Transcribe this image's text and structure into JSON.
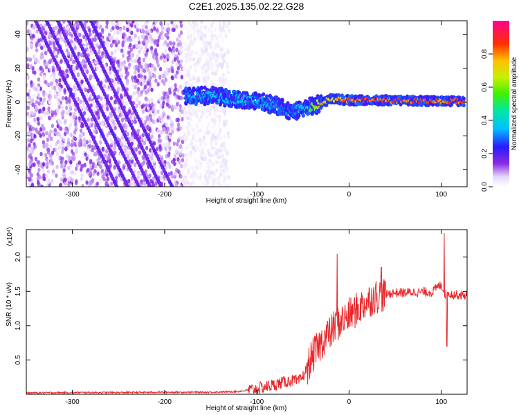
{
  "title": "C2E1.2025.135.02.22.G28",
  "chart_data": [
    {
      "type": "heatmap",
      "xlabel": "Height of straight line (km)",
      "ylabel": "Frequency (Hz)",
      "xlim": [
        -350,
        128
      ],
      "ylim": [
        -50,
        48
      ],
      "xticks": [
        -300,
        -200,
        -100,
        0,
        100
      ],
      "yticks": [
        -40,
        -20,
        0,
        20,
        40
      ],
      "colorbar": {
        "label": "Normalized spectral amplitude",
        "range": [
          0,
          1
        ],
        "ticks": [
          "0.0",
          "0.2",
          "0.4",
          "0.6",
          "0.8"
        ],
        "tick_values": [
          0,
          0.2,
          0.4,
          0.6,
          0.8
        ]
      },
      "features": [
        {
          "name": "diffuse_noise",
          "x_range": [
            -350,
            -130
          ],
          "y_range": [
            -50,
            48
          ],
          "amplitude": 0.12
        },
        {
          "name": "signal_track",
          "x": [
            -178,
            -150,
            -125,
            -100,
            -80,
            -60,
            -45,
            -30,
            -20,
            0,
            50,
            100,
            125
          ],
          "y": [
            3,
            4,
            2,
            1,
            -2,
            -6,
            -3,
            -1,
            2,
            1,
            1,
            0.5,
            0.5
          ],
          "amplitude": [
            0.35,
            0.4,
            0.4,
            0.4,
            0.35,
            0.3,
            0.5,
            0.8,
            0.75,
            0.9,
            0.9,
            0.9,
            0.9
          ]
        }
      ]
    },
    {
      "type": "line",
      "xlabel": "Height of straight line (km)",
      "ylabel": "SNR (10 * v/v)",
      "y_multiplier": "(x10⁴)",
      "xlim": [
        -350,
        128
      ],
      "ylim": [
        0,
        24000
      ],
      "xticks": [
        -300,
        -200,
        -100,
        0,
        100
      ],
      "yticks": [
        5000,
        10000,
        15000,
        20000
      ],
      "ytick_labels": [
        "0.5",
        "1.0",
        "1.5",
        "2.0"
      ],
      "series": [
        {
          "color": "#e8262a",
          "x": [
            -350,
            -300,
            -250,
            -200,
            -150,
            -120,
            -100,
            -90,
            -80,
            -70,
            -60,
            -55,
            -50,
            -45,
            -40,
            -35,
            -30,
            -25,
            -20,
            -15,
            -10,
            -5,
            0,
            5,
            10,
            15,
            20,
            25,
            30,
            35,
            40,
            45,
            50,
            60,
            70,
            80,
            90,
            95,
            100,
            103,
            105,
            108,
            110,
            115,
            120,
            128
          ],
          "y": [
            200,
            250,
            250,
            300,
            300,
            400,
            800,
            1100,
            1400,
            1800,
            2000,
            1800,
            2600,
            4000,
            5500,
            6500,
            7500,
            8500,
            9000,
            10000,
            10500,
            11000,
            11500,
            12000,
            12500,
            13000,
            13500,
            14000,
            14300,
            14500,
            14500,
            14700,
            14800,
            14800,
            14900,
            14900,
            14900,
            15500,
            16000,
            15000,
            14500,
            14800,
            14600,
            14500,
            14500,
            14400
          ],
          "spikes": [
            {
              "x": -13,
              "y": 20500
            },
            {
              "x": 35,
              "y": 18500
            },
            {
              "x": 103,
              "y": 23500
            },
            {
              "x": 106,
              "y": 7000
            }
          ]
        }
      ]
    }
  ]
}
